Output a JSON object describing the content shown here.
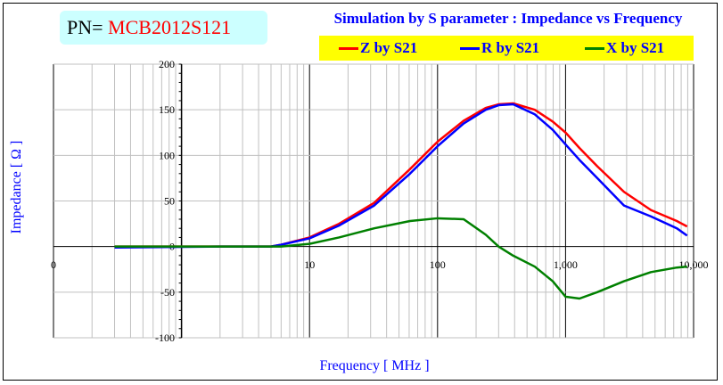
{
  "header": {
    "pn_label": "PN=",
    "pn_value": "MCB2012S121"
  },
  "chart_data": {
    "type": "line",
    "title": "Simulation by S parameter : Impedance vs Frequency",
    "xlabel": "Frequency [ MHz ]",
    "ylabel": "Impedance [ Ω ]",
    "xscale": "log",
    "xlim": [
      0.1,
      10000
    ],
    "ylim": [
      -100,
      200
    ],
    "xticks": [
      {
        "v": 0.1,
        "label": "0"
      },
      {
        "v": 10,
        "label": "10"
      },
      {
        "v": 100,
        "label": "100"
      },
      {
        "v": 1000,
        "label": "1,000"
      },
      {
        "v": 10000,
        "label": "10,000"
      }
    ],
    "yticks": [
      200,
      150,
      100,
      50,
      0,
      -50,
      -100
    ],
    "grid": true,
    "legend_position": "top-right",
    "x": [
      0.3,
      2,
      5,
      6,
      10,
      17,
      32,
      61,
      100,
      160,
      238,
      300,
      390,
      575,
      794,
      1000,
      1285,
      1770,
      2860,
      4650,
      7400,
      8900
    ],
    "series": [
      {
        "name": "Z by S21",
        "color": "#ff0000",
        "values": [
          0,
          0,
          0,
          2,
          10,
          25,
          48,
          85,
          115,
          138,
          152,
          156,
          157,
          150,
          137,
          125,
          108,
          88,
          60,
          40,
          28,
          22
        ]
      },
      {
        "name": "R by S21",
        "color": "#0000ff",
        "values": [
          -1,
          0,
          0,
          2,
          9,
          23,
          45,
          80,
          110,
          135,
          150,
          155,
          156,
          145,
          128,
          112,
          95,
          75,
          45,
          33,
          20,
          12
        ]
      },
      {
        "name": "X by S21",
        "color": "#008000",
        "values": [
          0,
          0,
          0,
          0,
          3,
          10,
          20,
          28,
          31,
          30,
          13,
          0,
          -10,
          -22,
          -38,
          -55,
          -57,
          -50,
          -38,
          -28,
          -23,
          -22
        ]
      }
    ]
  }
}
